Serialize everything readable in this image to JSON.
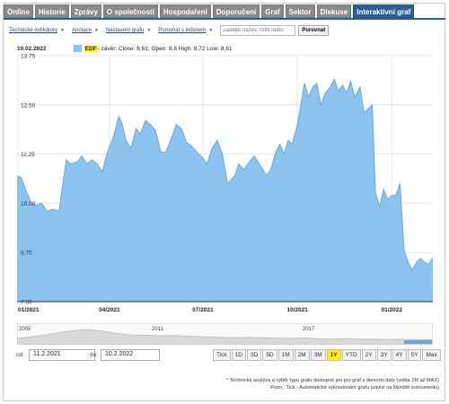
{
  "tabs": [
    "Online",
    "Historie",
    "Zprávy",
    "O společnosti",
    "Hospodaření",
    "Doporučení",
    "Graf",
    "Sektor",
    "Diskuse",
    "Interaktivní graf"
  ],
  "active_tab": "Interaktivní graf",
  "subnav": {
    "technical": "Technické indikátory",
    "annotations": "Anotace",
    "settings": "Nastavení grafu",
    "compare_index": "Porovnat s indexem",
    "search_placeholder": "Zadejte název, ISIN nebo",
    "compare_button": "Porovnat"
  },
  "header": {
    "date": "10.02.2022",
    "series": "EDF",
    "summary": " - závěr: Close: 8,61; Open: 8,6 High: 8,72 Low: 8,61"
  },
  "colors": {
    "fill": "#8dc3ef",
    "line": "#6aa7de",
    "accent": "#2f5f9a",
    "highlight": "#fff200"
  },
  "chart_data": {
    "type": "area",
    "yticks": [
      "13.75",
      "12.50",
      "11.25",
      "10.00",
      "8.75",
      "7.50"
    ],
    "ytick_values": [
      13.75,
      12.5,
      11.25,
      10.0,
      8.75,
      7.5
    ],
    "ylim": [
      7.5,
      13.75
    ],
    "xticks": [
      "01/2021",
      "04/2021",
      "07/2021",
      "10/2021",
      "01/2022"
    ],
    "xtick_dates": [
      "2021-01-01",
      "2021-04-01",
      "2021-07-01",
      "2021-10-01",
      "2022-01-01"
    ],
    "xlim": [
      "2021-01-01",
      "2022-02-10"
    ],
    "series": [
      {
        "name": "EDF",
        "points": [
          [
            "2021-01-01",
            10.7
          ],
          [
            "2021-01-05",
            10.65
          ],
          [
            "2021-01-10",
            10.3
          ],
          [
            "2021-01-15",
            10.0
          ],
          [
            "2021-01-20",
            9.95
          ],
          [
            "2021-01-25",
            10.0
          ],
          [
            "2021-01-30",
            9.8
          ],
          [
            "2021-02-05",
            9.85
          ],
          [
            "2021-02-11",
            9.8
          ],
          [
            "2021-02-14",
            10.4
          ],
          [
            "2021-02-18",
            11.1
          ],
          [
            "2021-02-22",
            11.0
          ],
          [
            "2021-03-01",
            11.05
          ],
          [
            "2021-03-05",
            11.2
          ],
          [
            "2021-03-10",
            11.0
          ],
          [
            "2021-03-15",
            11.1
          ],
          [
            "2021-03-20",
            11.0
          ],
          [
            "2021-03-25",
            10.8
          ],
          [
            "2021-03-30",
            11.3
          ],
          [
            "2021-04-05",
            11.7
          ],
          [
            "2021-04-10",
            12.2
          ],
          [
            "2021-04-13",
            12.05
          ],
          [
            "2021-04-17",
            11.6
          ],
          [
            "2021-04-22",
            11.4
          ],
          [
            "2021-04-27",
            11.9
          ],
          [
            "2021-05-01",
            11.75
          ],
          [
            "2021-05-06",
            12.1
          ],
          [
            "2021-05-11",
            12.0
          ],
          [
            "2021-05-16",
            11.85
          ],
          [
            "2021-05-21",
            11.3
          ],
          [
            "2021-05-26",
            11.3
          ],
          [
            "2021-06-01",
            11.7
          ],
          [
            "2021-06-05",
            12.0
          ],
          [
            "2021-06-10",
            11.9
          ],
          [
            "2021-06-15",
            11.55
          ],
          [
            "2021-06-20",
            11.45
          ],
          [
            "2021-06-25",
            11.3
          ],
          [
            "2021-07-01",
            11.15
          ],
          [
            "2021-07-05",
            11.0
          ],
          [
            "2021-07-10",
            11.4
          ],
          [
            "2021-07-15",
            11.6
          ],
          [
            "2021-07-20",
            11.25
          ],
          [
            "2021-07-25",
            10.5
          ],
          [
            "2021-08-01",
            10.7
          ],
          [
            "2021-08-05",
            11.0
          ],
          [
            "2021-08-10",
            10.85
          ],
          [
            "2021-08-15",
            11.05
          ],
          [
            "2021-08-20",
            11.2
          ],
          [
            "2021-08-25",
            11.0
          ],
          [
            "2021-09-01",
            10.7
          ],
          [
            "2021-09-05",
            10.85
          ],
          [
            "2021-09-10",
            11.3
          ],
          [
            "2021-09-14",
            11.5
          ],
          [
            "2021-09-18",
            11.25
          ],
          [
            "2021-09-22",
            11.6
          ],
          [
            "2021-09-26",
            11.5
          ],
          [
            "2021-10-01",
            12.0
          ],
          [
            "2021-10-05",
            12.6
          ],
          [
            "2021-10-08",
            13.05
          ],
          [
            "2021-10-12",
            12.7
          ],
          [
            "2021-10-16",
            12.95
          ],
          [
            "2021-10-20",
            13.05
          ],
          [
            "2021-10-24",
            12.5
          ],
          [
            "2021-10-28",
            12.8
          ],
          [
            "2021-11-02",
            12.95
          ],
          [
            "2021-11-06",
            13.15
          ],
          [
            "2021-11-10",
            12.85
          ],
          [
            "2021-11-14",
            13.0
          ],
          [
            "2021-11-18",
            12.8
          ],
          [
            "2021-11-22",
            13.1
          ],
          [
            "2021-11-26",
            12.7
          ],
          [
            "2021-12-01",
            12.95
          ],
          [
            "2021-12-05",
            12.3
          ],
          [
            "2021-12-09",
            12.4
          ],
          [
            "2021-12-13",
            12.5
          ],
          [
            "2021-12-16",
            10.3
          ],
          [
            "2021-12-20",
            9.9
          ],
          [
            "2021-12-24",
            10.35
          ],
          [
            "2021-12-28",
            10.1
          ],
          [
            "2022-01-01",
            10.2
          ],
          [
            "2022-01-05",
            10.2
          ],
          [
            "2022-01-09",
            10.5
          ],
          [
            "2022-01-13",
            8.8
          ],
          [
            "2022-01-17",
            8.5
          ],
          [
            "2022-01-21",
            8.3
          ],
          [
            "2022-01-25",
            8.5
          ],
          [
            "2022-01-29",
            8.6
          ],
          [
            "2022-02-02",
            8.5
          ],
          [
            "2022-02-06",
            8.45
          ],
          [
            "2022-02-10",
            8.61
          ]
        ]
      }
    ]
  },
  "navigator": {
    "labels": [
      "2005",
      "2011",
      "2017"
    ],
    "profile": [
      0.2,
      0.35,
      0.5,
      0.7,
      0.85,
      0.9,
      0.8,
      0.6,
      0.5,
      0.48,
      0.42,
      0.45,
      0.4,
      0.35,
      0.3,
      0.28,
      0.3,
      0.27,
      0.25,
      0.22,
      0.24,
      0.2,
      0.18,
      0.2,
      0.16,
      0.15,
      0.14,
      0.15,
      0.13,
      0.12
    ]
  },
  "controls": {
    "from_label": "od:",
    "from_value": "11.2.2021",
    "to_label": "do:",
    "to_value": "10.2.2022",
    "ranges": [
      "Tick",
      "1D",
      "3D",
      "5D",
      "1M",
      "2M",
      "3M",
      "1Y",
      "YTD",
      "2Y",
      "3Y",
      "4Y",
      "5Y",
      "Max"
    ],
    "selected_range": "1Y"
  },
  "notes": {
    "line1": "* Technická analýza a výběr typu grafu dostupné jen pro graf s denními daty (volba 1M až MAX)",
    "line2": "Pozn.: Tick - Automatické vykreslování grafu (závisí na likviditě instrumentu)"
  }
}
